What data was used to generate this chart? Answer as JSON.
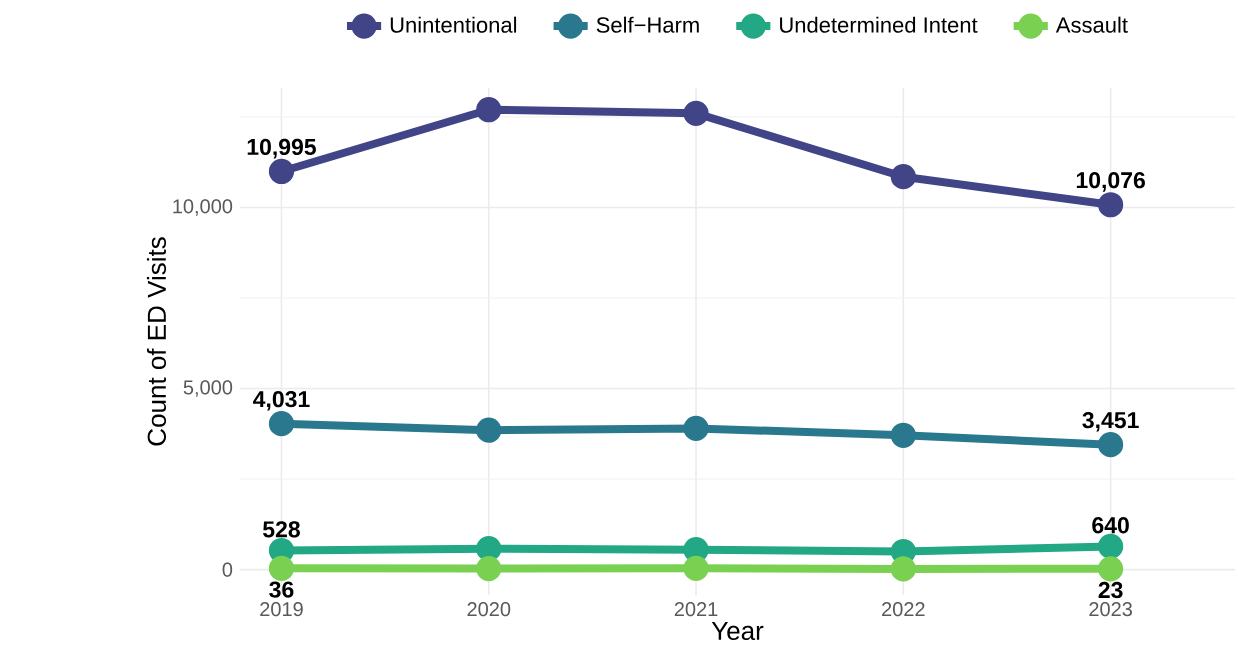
{
  "chart_data": {
    "type": "line",
    "xlabel": "Year",
    "ylabel": "Count of ED Visits",
    "x": [
      2019,
      2020,
      2021,
      2022,
      2023
    ],
    "series": [
      {
        "name": "Unintentional",
        "color": "#414487",
        "values": [
          10995,
          12700,
          12600,
          10850,
          10076
        ],
        "value_labels": [
          "10,995",
          null,
          null,
          null,
          "10,076"
        ]
      },
      {
        "name": "Self−Harm",
        "color": "#2A788E",
        "values": [
          4031,
          3850,
          3900,
          3710,
          3451
        ],
        "value_labels": [
          "4,031",
          null,
          null,
          null,
          "3,451"
        ]
      },
      {
        "name": "Undetermined Intent",
        "color": "#22A884",
        "values": [
          528,
          580,
          550,
          500,
          640
        ],
        "value_labels": [
          "528",
          null,
          null,
          null,
          "640"
        ]
      },
      {
        "name": "Assault",
        "color": "#7AD151",
        "values": [
          36,
          30,
          35,
          20,
          23
        ],
        "value_labels": [
          "36",
          null,
          null,
          null,
          "23"
        ]
      }
    ],
    "xlim": [
      2018.8,
      2023.6
    ],
    "ylim": [
      -700,
      13300
    ],
    "xticks": [
      2019,
      2020,
      2021,
      2022,
      2023
    ],
    "yticks": [
      0,
      {
        "value": 5000,
        "label": "5,000"
      },
      {
        "value": 10000,
        "label": "10,000"
      }
    ],
    "grid": true,
    "legend": "top",
    "marker": "circle",
    "line_style": "solid"
  }
}
